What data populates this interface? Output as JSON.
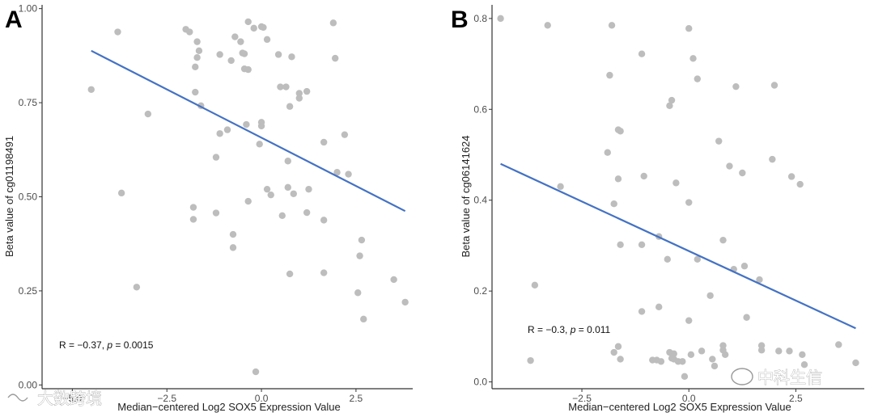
{
  "chart_data": [
    {
      "type": "scatter",
      "panel": "A",
      "xlabel": "Median−centered Log2 SOX5 Expression Value",
      "ylabel": "Beta value of cg01198491",
      "xlim": [
        -5.8,
        4.0
      ],
      "ylim": [
        -0.01,
        1.01
      ],
      "xticks": [
        -5.0,
        -2.5,
        0.0,
        2.5
      ],
      "xtick_labels": [
        "−5.0",
        "−2.5",
        "0.0",
        "2.5"
      ],
      "yticks": [
        0.0,
        0.25,
        0.5,
        0.75,
        1.0
      ],
      "ytick_labels": [
        "0.00",
        "0.25",
        "0.50",
        "0.75",
        "1.00"
      ],
      "fit": {
        "x": [
          -4.5,
          3.8
        ],
        "y": [
          0.888,
          0.462
        ]
      },
      "annotation": {
        "r_prefix": "R = −0.37, ",
        "p_italic": "p",
        "p_suffix": " = 0.0015"
      },
      "points": [
        [
          -4.5,
          0.785
        ],
        [
          -3.8,
          0.938
        ],
        [
          -3.7,
          0.51
        ],
        [
          -3.3,
          0.26
        ],
        [
          -3.0,
          0.72
        ],
        [
          -2.0,
          0.945
        ],
        [
          -1.9,
          0.938
        ],
        [
          -1.8,
          0.472
        ],
        [
          -1.8,
          0.44
        ],
        [
          -1.7,
          0.912
        ],
        [
          -1.65,
          0.888
        ],
        [
          -1.7,
          0.87
        ],
        [
          -1.75,
          0.845
        ],
        [
          -1.75,
          0.778
        ],
        [
          -1.6,
          0.742
        ],
        [
          -1.2,
          0.605
        ],
        [
          -1.1,
          0.668
        ],
        [
          -1.2,
          0.457
        ],
        [
          -1.1,
          0.878
        ],
        [
          -0.9,
          0.678
        ],
        [
          -0.8,
          0.862
        ],
        [
          -0.75,
          0.4
        ],
        [
          -0.75,
          0.365
        ],
        [
          -0.7,
          0.925
        ],
        [
          -0.55,
          0.912
        ],
        [
          -0.5,
          0.882
        ],
        [
          -0.45,
          0.88
        ],
        [
          -0.45,
          0.84
        ],
        [
          -0.35,
          0.965
        ],
        [
          -0.35,
          0.838
        ],
        [
          -0.4,
          0.692
        ],
        [
          -0.35,
          0.488
        ],
        [
          -0.2,
          0.948
        ],
        [
          -0.15,
          0.035
        ],
        [
          0.0,
          0.952
        ],
        [
          0.05,
          0.95
        ],
        [
          0.0,
          0.698
        ],
        [
          0.0,
          0.688
        ],
        [
          -0.05,
          0.64
        ],
        [
          0.15,
          0.918
        ],
        [
          0.15,
          0.52
        ],
        [
          0.25,
          0.505
        ],
        [
          0.45,
          0.878
        ],
        [
          0.5,
          0.792
        ],
        [
          0.65,
          0.792
        ],
        [
          0.55,
          0.45
        ],
        [
          0.75,
          0.74
        ],
        [
          0.7,
          0.595
        ],
        [
          0.7,
          0.525
        ],
        [
          0.75,
          0.295
        ],
        [
          0.8,
          0.872
        ],
        [
          0.85,
          0.508
        ],
        [
          1.0,
          0.775
        ],
        [
          1.0,
          0.762
        ],
        [
          1.2,
          0.78
        ],
        [
          1.2,
          0.458
        ],
        [
          1.25,
          0.52
        ],
        [
          1.65,
          0.645
        ],
        [
          1.65,
          0.438
        ],
        [
          1.65,
          0.298
        ],
        [
          1.9,
          0.962
        ],
        [
          1.95,
          0.868
        ],
        [
          2.0,
          0.565
        ],
        [
          2.2,
          0.665
        ],
        [
          2.3,
          0.56
        ],
        [
          2.55,
          0.245
        ],
        [
          2.6,
          0.343
        ],
        [
          2.65,
          0.385
        ],
        [
          2.7,
          0.175
        ],
        [
          3.5,
          0.28
        ],
        [
          3.8,
          0.22
        ]
      ]
    },
    {
      "type": "scatter",
      "panel": "B",
      "xlabel": "Median−centered Log2 SOX5 Expression Value",
      "ylabel": "Beta value of cg06141624",
      "xlim": [
        -4.6,
        4.1
      ],
      "ylim": [
        -0.015,
        0.83
      ],
      "xticks": [
        -2.5,
        0.0,
        2.5
      ],
      "xtick_labels": [
        "−2.5",
        "0.0",
        "2.5"
      ],
      "yticks": [
        0.0,
        0.2,
        0.4,
        0.6,
        0.8
      ],
      "ytick_labels": [
        "0.0",
        "0.2",
        "0.4",
        "0.6",
        "0.8"
      ],
      "fit": {
        "x": [
          -4.4,
          3.9
        ],
        "y": [
          0.48,
          0.118
        ]
      },
      "annotation": {
        "r_prefix": "R = −0.3, ",
        "p_italic": "p",
        "p_suffix": " = 0.011"
      },
      "points": [
        [
          -4.4,
          0.8
        ],
        [
          -3.6,
          0.213
        ],
        [
          -3.7,
          0.047
        ],
        [
          -3.3,
          0.785
        ],
        [
          -3.0,
          0.43
        ],
        [
          -1.9,
          0.505
        ],
        [
          -1.85,
          0.675
        ],
        [
          -1.8,
          0.785
        ],
        [
          -1.75,
          0.392
        ],
        [
          -1.65,
          0.555
        ],
        [
          -1.6,
          0.552
        ],
        [
          -1.65,
          0.447
        ],
        [
          -1.6,
          0.302
        ],
        [
          -1.75,
          0.065
        ],
        [
          -1.65,
          0.078
        ],
        [
          -1.6,
          0.05
        ],
        [
          -1.1,
          0.722
        ],
        [
          -1.05,
          0.453
        ],
        [
          -1.1,
          0.302
        ],
        [
          -1.1,
          0.155
        ],
        [
          -0.85,
          0.048
        ],
        [
          -0.75,
          0.048
        ],
        [
          -0.7,
          0.32
        ],
        [
          -0.7,
          0.165
        ],
        [
          -0.65,
          0.045
        ],
        [
          -0.5,
          0.27
        ],
        [
          -0.45,
          0.065
        ],
        [
          -0.4,
          0.052
        ],
        [
          -0.35,
          0.062
        ],
        [
          -0.35,
          0.05
        ],
        [
          -0.45,
          0.608
        ],
        [
          -0.4,
          0.62
        ],
        [
          -0.3,
          0.438
        ],
        [
          -0.25,
          0.045
        ],
        [
          -0.15,
          0.045
        ],
        [
          0.0,
          0.778
        ],
        [
          0.1,
          0.712
        ],
        [
          0.0,
          0.395
        ],
        [
          0.2,
          0.667
        ],
        [
          0.2,
          0.27
        ],
        [
          0.0,
          0.135
        ],
        [
          -0.1,
          0.012
        ],
        [
          0.05,
          0.06
        ],
        [
          0.3,
          0.068
        ],
        [
          0.5,
          0.19
        ],
        [
          0.55,
          0.05
        ],
        [
          0.6,
          0.035
        ],
        [
          0.7,
          0.53
        ],
        [
          0.8,
          0.312
        ],
        [
          0.8,
          0.08
        ],
        [
          0.8,
          0.07
        ],
        [
          0.85,
          0.06
        ],
        [
          0.95,
          0.475
        ],
        [
          1.1,
          0.65
        ],
        [
          1.05,
          0.248
        ],
        [
          1.25,
          0.46
        ],
        [
          1.3,
          0.255
        ],
        [
          1.35,
          0.142
        ],
        [
          1.65,
          0.225
        ],
        [
          1.7,
          0.08
        ],
        [
          1.7,
          0.07
        ],
        [
          1.95,
          0.49
        ],
        [
          2.0,
          0.653
        ],
        [
          2.1,
          0.068
        ],
        [
          2.35,
          0.068
        ],
        [
          2.4,
          0.452
        ],
        [
          2.6,
          0.435
        ],
        [
          2.65,
          0.06
        ],
        [
          2.7,
          0.038
        ],
        [
          3.5,
          0.082
        ],
        [
          3.9,
          0.042
        ]
      ]
    }
  ],
  "labels": {
    "panel_a": "A",
    "panel_b": "B"
  },
  "watermarks": {
    "left": "大数跨境",
    "right": "中科生信"
  },
  "colors": {
    "points": "#bdbdbd",
    "fit_line": "#4472c4",
    "axis": "#333333"
  }
}
